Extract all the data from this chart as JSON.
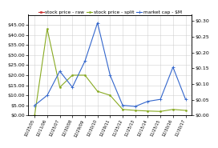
{
  "legend": [
    "stock price - raw",
    "stock price - split",
    "market cap - $M"
  ],
  "x_labels": [
    "10/25/05",
    "12/11/06",
    "12/25/07",
    "12/30/08",
    "12/29/09",
    "12/30/10",
    "12/29/11",
    "11/25/12",
    "11/25/13",
    "12/15/14",
    "11/25/15",
    "12/30/16",
    "11/30/17"
  ],
  "market_cap": [
    5,
    10,
    22,
    14,
    27,
    46,
    20,
    5,
    4.5,
    7,
    8,
    24,
    8
  ],
  "stock_split": [
    0,
    43,
    14,
    20,
    20,
    12,
    10,
    3,
    2.5,
    2.2,
    2.0,
    3.0,
    2.5
  ],
  "stock_raw": [
    3.5,
    3.0,
    2.0,
    1.6,
    1.4,
    1.1,
    0.9,
    0.7,
    0.7,
    0.6,
    0.6,
    0.8,
    0.6
  ],
  "left_ylim": [
    0,
    50
  ],
  "left_yticks": [
    0,
    5,
    10,
    15,
    20,
    25,
    30,
    35,
    40,
    45
  ],
  "left_yticklabels": [
    "$0.00",
    "$5.00",
    "$10.00",
    "$15.00",
    "$20.00",
    "$25.00",
    "$30.00",
    "$35.00",
    "$40.00",
    "$45.00"
  ],
  "right_ylim": [
    0,
    0.32
  ],
  "right_yticks": [
    0.0,
    0.05,
    0.1,
    0.15,
    0.2,
    0.25,
    0.3
  ],
  "right_yticklabels": [
    "$0.00",
    "$0.05",
    "$0.10",
    "$0.15",
    "$0.20",
    "$0.25",
    "$0.30"
  ],
  "color_raw": "#cc3333",
  "color_split": "#88aa22",
  "color_cap": "#3366cc",
  "bg_color": "#ffffff",
  "grid_color": "#cccccc",
  "font_size": 4.5,
  "legend_font_size": 4.2,
  "linewidth": 0.8,
  "markersize_raw": 2.0,
  "markersize_split": 1.5,
  "markersize_cap": 3.0
}
